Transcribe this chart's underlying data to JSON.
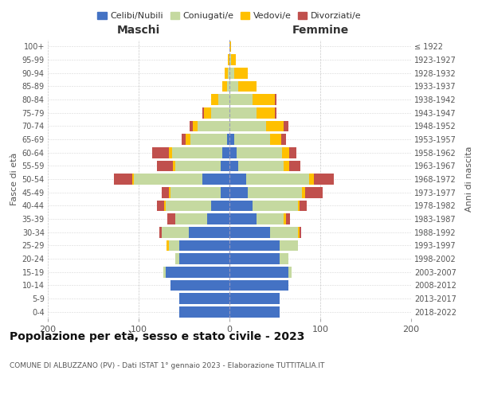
{
  "age_groups": [
    "0-4",
    "5-9",
    "10-14",
    "15-19",
    "20-24",
    "25-29",
    "30-34",
    "35-39",
    "40-44",
    "45-49",
    "50-54",
    "55-59",
    "60-64",
    "65-69",
    "70-74",
    "75-79",
    "80-84",
    "85-89",
    "90-94",
    "95-99",
    "100+"
  ],
  "birth_years": [
    "2018-2022",
    "2013-2017",
    "2008-2012",
    "2003-2007",
    "1998-2002",
    "1993-1997",
    "1988-1992",
    "1983-1987",
    "1978-1982",
    "1973-1977",
    "1968-1972",
    "1963-1967",
    "1958-1962",
    "1953-1957",
    "1948-1952",
    "1943-1947",
    "1938-1942",
    "1933-1937",
    "1928-1932",
    "1923-1927",
    "≤ 1922"
  ],
  "colors": {
    "celibi": "#4472c4",
    "coniugati": "#c5d9a0",
    "vedovi": "#ffc000",
    "divorziati": "#c0504d"
  },
  "maschi": {
    "celibi": [
      55,
      55,
      65,
      70,
      55,
      55,
      45,
      25,
      20,
      10,
      30,
      10,
      8,
      3,
      0,
      0,
      0,
      0,
      0,
      0,
      0
    ],
    "coniugati": [
      0,
      0,
      0,
      3,
      5,
      12,
      30,
      35,
      50,
      55,
      75,
      50,
      55,
      40,
      35,
      20,
      12,
      3,
      2,
      0,
      0
    ],
    "vedovi": [
      0,
      0,
      0,
      0,
      0,
      2,
      0,
      0,
      2,
      2,
      2,
      2,
      4,
      5,
      5,
      8,
      8,
      5,
      3,
      2,
      0
    ],
    "divorziati": [
      0,
      0,
      0,
      0,
      0,
      0,
      2,
      8,
      8,
      8,
      20,
      18,
      18,
      5,
      4,
      2,
      0,
      0,
      0,
      0,
      0
    ]
  },
  "femmine": {
    "celibi": [
      55,
      55,
      65,
      65,
      55,
      55,
      45,
      30,
      25,
      20,
      18,
      10,
      8,
      5,
      0,
      0,
      0,
      0,
      0,
      0,
      0
    ],
    "coniugati": [
      0,
      0,
      0,
      3,
      10,
      20,
      30,
      30,
      50,
      60,
      70,
      50,
      50,
      40,
      40,
      30,
      25,
      10,
      5,
      2,
      0
    ],
    "vedovi": [
      0,
      0,
      0,
      0,
      0,
      0,
      2,
      2,
      2,
      3,
      5,
      6,
      8,
      12,
      20,
      20,
      25,
      20,
      15,
      5,
      2
    ],
    "divorziati": [
      0,
      0,
      0,
      0,
      0,
      0,
      2,
      5,
      8,
      20,
      22,
      12,
      8,
      5,
      5,
      2,
      2,
      0,
      0,
      0,
      0
    ]
  },
  "xlim": 200,
  "title": "Popolazione per età, sesso e stato civile - 2023",
  "subtitle": "COMUNE DI ALBUZZANO (PV) - Dati ISTAT 1° gennaio 2023 - Elaborazione TUTTITALIA.IT",
  "xlabel_left": "Maschi",
  "xlabel_right": "Femmine",
  "ylabel_left": "Fasce di età",
  "ylabel_right": "Anni di nascita",
  "legend_labels": [
    "Celibi/Nubili",
    "Coniugati/e",
    "Vedovi/e",
    "Divorziati/e"
  ],
  "background_color": "#ffffff",
  "grid_color": "#bbbbbb"
}
